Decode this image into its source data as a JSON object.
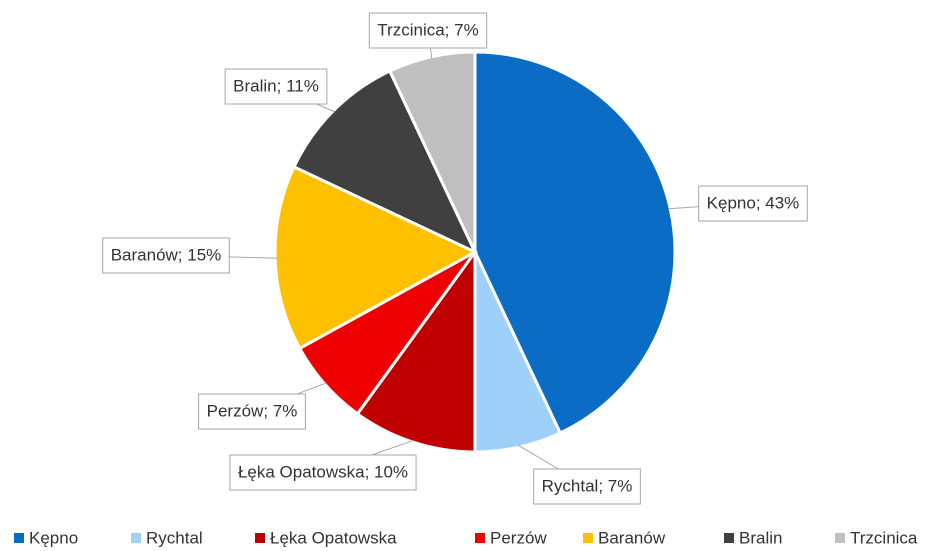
{
  "chart_data": {
    "type": "pie",
    "categories": [
      "Kępno",
      "Rychtal",
      "Łęka Opatowska",
      "Perzów",
      "Baranów",
      "Bralin",
      "Trzcinica"
    ],
    "values": [
      43,
      7,
      10,
      7,
      15,
      11,
      7
    ],
    "value_labels": [
      "Kępno; 43%",
      "Rychtal; 7%",
      "Łęka Opatowska; 10%",
      "Perzów; 7%",
      "Baranów; 15%",
      "Bralin; 11%",
      "Trzcinica; 7%"
    ],
    "colors": [
      "#0a6cc4",
      "#9fd0fa",
      "#c00000",
      "#ee0000",
      "#ffc000",
      "#404040",
      "#bfbfbf"
    ],
    "legend": "bottom"
  }
}
